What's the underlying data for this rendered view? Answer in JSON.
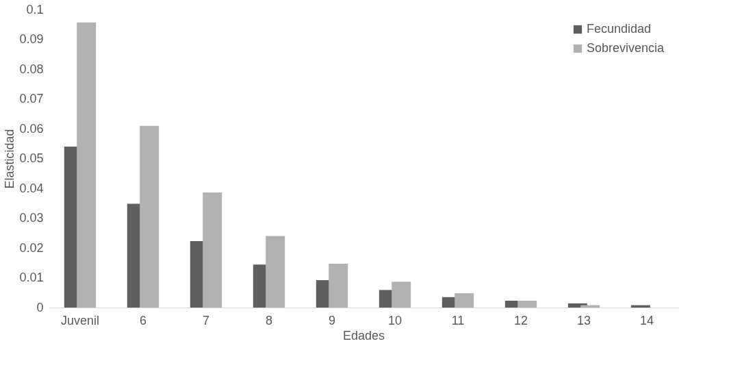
{
  "chart_data": {
    "type": "bar",
    "xlabel": "Edades",
    "ylabel": "Elasticidad",
    "categories": [
      "Juvenil",
      "6",
      "7",
      "8",
      "9",
      "10",
      "11",
      "12",
      "13",
      "14"
    ],
    "series": [
      {
        "name": "Fecundidad",
        "color": "#5f5f5f",
        "values": [
          0.054,
          0.0348,
          0.0223,
          0.0144,
          0.0092,
          0.0059,
          0.0035,
          0.0023,
          0.0014,
          0.0008
        ]
      },
      {
        "name": "Sobrevivencia",
        "color": "#b2b2b2",
        "values": [
          0.0957,
          0.061,
          0.0386,
          0.024,
          0.0147,
          0.0087,
          0.0048,
          0.0023,
          0.0008,
          0.0
        ]
      }
    ],
    "ylim": [
      0,
      0.1
    ],
    "yticks": [
      0,
      0.01,
      0.02,
      0.03,
      0.04,
      0.05,
      0.06,
      0.07,
      0.08,
      0.09,
      0.1
    ],
    "grid": false,
    "legend": "top right"
  }
}
